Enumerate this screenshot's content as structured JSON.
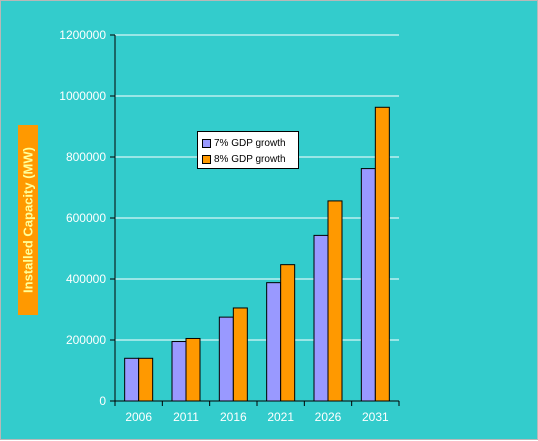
{
  "chart_data": {
    "type": "bar",
    "title": "",
    "xlabel": "",
    "ylabel": "Installed Capacity (MW)",
    "categories": [
      "2006",
      "2011",
      "2016",
      "2021",
      "2026",
      "2031"
    ],
    "series": [
      {
        "name": "7% GDP growth",
        "color": "#9999ff",
        "values": [
          140000,
          195000,
          275000,
          388000,
          543000,
          762000
        ]
      },
      {
        "name": "8% GDP growth",
        "color": "#ff9900",
        "values": [
          140000,
          205000,
          305000,
          447000,
          656000,
          963000
        ]
      }
    ],
    "ylim": [
      0,
      1200000
    ],
    "yticks": [
      "0",
      "200000",
      "400000",
      "600000",
      "800000",
      "1000000",
      "1200000"
    ],
    "grid": true,
    "legend_position": "upper-center",
    "colors": {
      "background": "#33cccc",
      "grid": "#ffffff",
      "axis": "#000000",
      "text": "#ffffff",
      "ylabel_box": "#ff9900",
      "ylabel_text": "#ffff99"
    }
  }
}
